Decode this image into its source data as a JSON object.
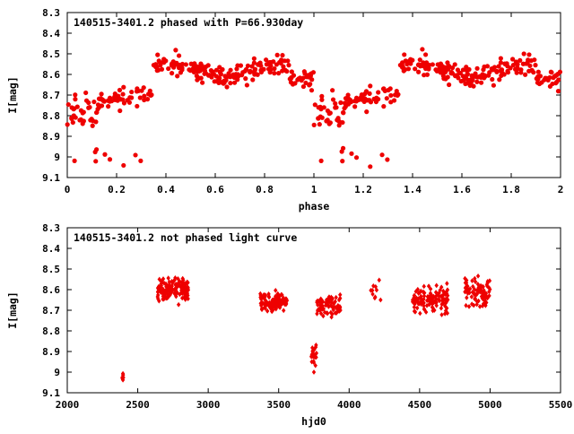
{
  "colors": {
    "points": "#ee0000",
    "frame": "#000000",
    "background": "#ffffff"
  },
  "chart_data": [
    {
      "type": "scatter",
      "title": "140515-3401.2 phased with P=66.930day",
      "xlabel": "phase",
      "ylabel": "I[mag]",
      "xlim": [
        0,
        2
      ],
      "ylim": [
        9.1,
        8.3
      ],
      "y_inverted": true,
      "xticks": [
        "0",
        "0.2",
        "0.4",
        "0.6",
        "0.8",
        "1",
        "1.2",
        "1.4",
        "1.6",
        "1.8",
        "2"
      ],
      "yticks": [
        "8.3",
        "8.4",
        "8.5",
        "8.6",
        "8.7",
        "8.8",
        "8.9",
        "9",
        "9.1"
      ],
      "grid": false,
      "marker": "filled circle",
      "point_count": 600,
      "x": [],
      "y": []
    },
    {
      "type": "scatter",
      "title": "140515-3401.2 not phased light curve",
      "xlabel": "hjd0",
      "ylabel": "I[mag]",
      "xlim": [
        2000,
        5500
      ],
      "ylim": [
        9.1,
        8.3
      ],
      "y_inverted": true,
      "xticks": [
        "2000",
        "2500",
        "3000",
        "3500",
        "4000",
        "4500",
        "5000",
        "5500"
      ],
      "yticks": [
        "8.3",
        "8.4",
        "8.5",
        "8.6",
        "8.7",
        "8.8",
        "8.9",
        "9",
        "9.1"
      ],
      "grid": false,
      "marker": "filled diamond",
      "point_count": 600,
      "x": [],
      "y": []
    }
  ]
}
